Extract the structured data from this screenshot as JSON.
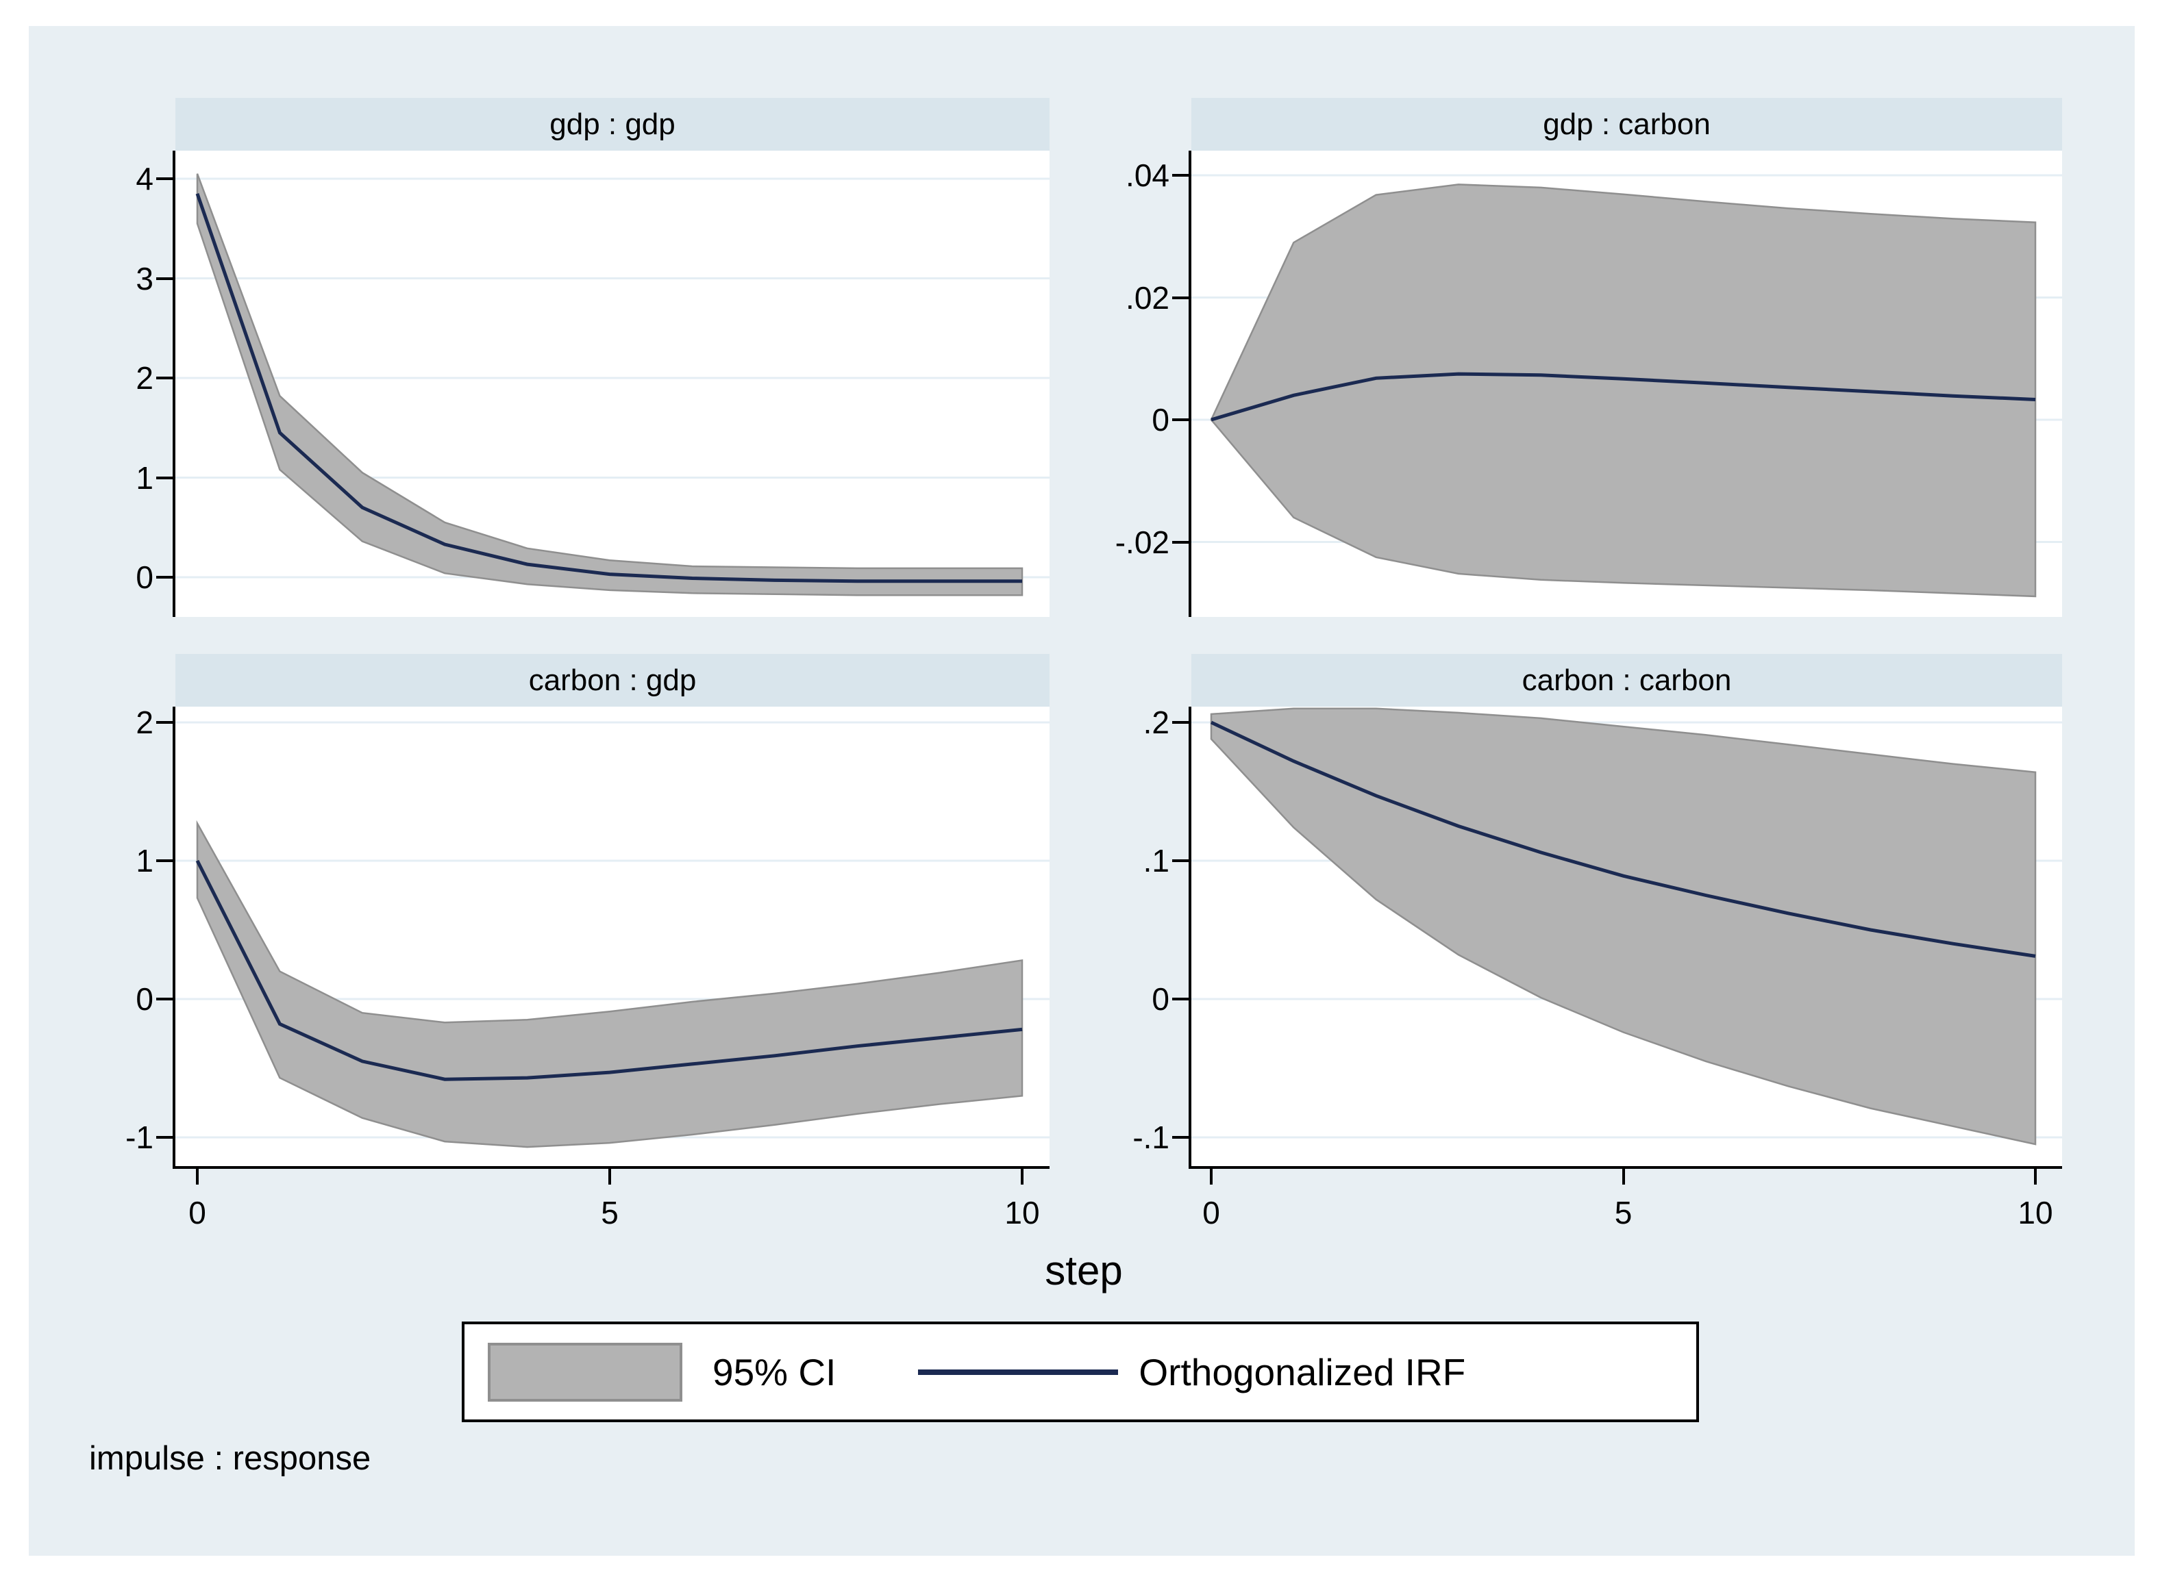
{
  "figure": {
    "xlabel": "step",
    "footnote": "impulse : response"
  },
  "legend": {
    "ci_label": "95% CI",
    "irf_label": "Orthogonalized IRF"
  },
  "colors": {
    "figure_background": "#e8eff3",
    "panel_title_background": "#d9e5ec",
    "plot_background": "#ffffff",
    "gridline": "#e4eef4",
    "ci_band_fill": "#b3b3b3",
    "ci_band_edge": "#8f8f8f",
    "irf_line": "#1b2a52",
    "axis": "#000000"
  },
  "chart_data": [
    {
      "type": "area",
      "title": "gdp : gdp",
      "impulse": "gdp",
      "response": "gdp",
      "x": [
        0,
        1,
        2,
        3,
        4,
        5,
        6,
        7,
        8,
        9,
        10
      ],
      "irf": [
        3.85,
        1.45,
        0.7,
        0.33,
        0.13,
        0.03,
        -0.01,
        -0.03,
        -0.04,
        -0.04,
        -0.04
      ],
      "ci_upper": [
        4.05,
        1.82,
        1.05,
        0.55,
        0.29,
        0.17,
        0.11,
        0.1,
        0.09,
        0.09,
        0.09
      ],
      "ci_lower": [
        3.55,
        1.08,
        0.36,
        0.04,
        -0.07,
        -0.13,
        -0.16,
        -0.17,
        -0.18,
        -0.18,
        -0.18
      ],
      "yticks": [
        {
          "v": 4,
          "label": "4"
        },
        {
          "v": 3,
          "label": "3"
        },
        {
          "v": 2,
          "label": "2"
        },
        {
          "v": 1,
          "label": "1"
        },
        {
          "v": 0,
          "label": "0"
        }
      ],
      "xticks": [],
      "ylim": [
        -0.4,
        4.3
      ],
      "xlim": [
        0,
        10
      ]
    },
    {
      "type": "area",
      "title": "gdp : carbon",
      "impulse": "gdp",
      "response": "carbon",
      "x": [
        0,
        1,
        2,
        3,
        4,
        5,
        6,
        7,
        8,
        9,
        10
      ],
      "irf": [
        0,
        0.004,
        0.0068,
        0.0075,
        0.0073,
        0.0067,
        0.006,
        0.0053,
        0.0046,
        0.0039,
        0.0033
      ],
      "ci_upper": [
        0,
        0.029,
        0.0368,
        0.0385,
        0.038,
        0.0369,
        0.0357,
        0.0346,
        0.0337,
        0.0329,
        0.0323
      ],
      "ci_lower": [
        0,
        -0.016,
        -0.0225,
        -0.0252,
        -0.0262,
        -0.0267,
        -0.0271,
        -0.0275,
        -0.0279,
        -0.0284,
        -0.0289
      ],
      "yticks": [
        {
          "v": 0.04,
          "label": ".04"
        },
        {
          "v": 0.02,
          "label": ".02"
        },
        {
          "v": 0,
          "label": "0"
        },
        {
          "v": -0.02,
          "label": "-.02"
        }
      ],
      "xticks": [],
      "ylim": [
        -0.036,
        0.044
      ],
      "xlim": [
        0,
        10
      ]
    },
    {
      "type": "area",
      "title": "carbon : gdp",
      "impulse": "carbon",
      "response": "gdp",
      "x": [
        0,
        1,
        2,
        3,
        4,
        5,
        6,
        7,
        8,
        9,
        10
      ],
      "irf": [
        1.0,
        -0.18,
        -0.45,
        -0.58,
        -0.57,
        -0.53,
        -0.47,
        -0.41,
        -0.34,
        -0.28,
        -0.22
      ],
      "ci_upper": [
        1.27,
        0.2,
        -0.1,
        -0.17,
        -0.15,
        -0.09,
        -0.02,
        0.04,
        0.11,
        0.19,
        0.28
      ],
      "ci_lower": [
        0.73,
        -0.57,
        -0.86,
        -1.03,
        -1.07,
        -1.04,
        -0.98,
        -0.91,
        -0.83,
        -0.76,
        -0.7
      ],
      "yticks": [
        {
          "v": 2,
          "label": "2"
        },
        {
          "v": 1,
          "label": "1"
        },
        {
          "v": 0,
          "label": "0"
        },
        {
          "v": -1,
          "label": "-1"
        }
      ],
      "xticks": [
        {
          "v": 0,
          "label": "0"
        },
        {
          "v": 5,
          "label": "5"
        },
        {
          "v": 10,
          "label": "10"
        }
      ],
      "ylim": [
        -1.2,
        2.1
      ],
      "xlim": [
        0,
        10
      ]
    },
    {
      "type": "area",
      "title": "carbon : carbon",
      "impulse": "carbon",
      "response": "carbon",
      "x": [
        0,
        1,
        2,
        3,
        4,
        5,
        6,
        7,
        8,
        9,
        10
      ],
      "irf": [
        0.2,
        0.172,
        0.147,
        0.125,
        0.106,
        0.089,
        0.075,
        0.062,
        0.05,
        0.04,
        0.031
      ],
      "ci_upper": [
        0.206,
        0.21,
        0.21,
        0.207,
        0.203,
        0.197,
        0.191,
        0.184,
        0.177,
        0.17,
        0.164
      ],
      "ci_lower": [
        0.188,
        0.124,
        0.072,
        0.032,
        0.001,
        -0.024,
        -0.045,
        -0.063,
        -0.079,
        -0.092,
        -0.105
      ],
      "yticks": [
        {
          "v": 0.2,
          "label": ".2"
        },
        {
          "v": 0.1,
          "label": ".1"
        },
        {
          "v": 0,
          "label": "0"
        },
        {
          "v": -0.1,
          "label": "-.1"
        }
      ],
      "xticks": [
        {
          "v": 0,
          "label": "0"
        },
        {
          "v": 5,
          "label": "5"
        },
        {
          "v": 10,
          "label": "10"
        }
      ],
      "ylim": [
        -0.21,
        0.21
      ],
      "xlim": [
        0,
        10
      ]
    }
  ]
}
